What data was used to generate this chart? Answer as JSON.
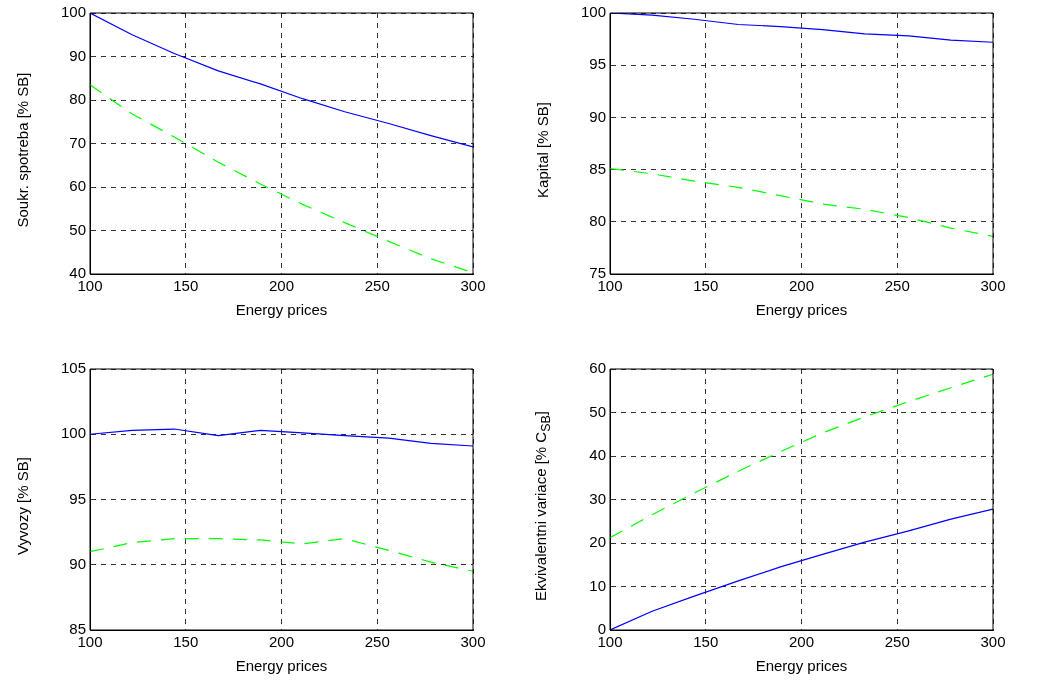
{
  "chart_data": [
    {
      "type": "line",
      "xlabel": "Energy prices",
      "ylabel": "Soukr. spotreba [% SB]",
      "x": [
        100,
        122,
        144,
        167,
        189,
        211,
        233,
        256,
        278,
        300
      ],
      "xlim": [
        100,
        300
      ],
      "xticks": [
        100,
        150,
        200,
        250,
        300
      ],
      "ylim": [
        40,
        100
      ],
      "yticks": [
        40,
        50,
        60,
        70,
        80,
        90,
        100
      ],
      "grid": true,
      "marker": "none",
      "series": [
        {
          "color": "#0000ff",
          "line_style": "solid",
          "values": [
            100,
            95,
            90.7,
            86.7,
            83.7,
            80.3,
            77.3,
            74.6,
            71.8,
            69.2
          ]
        },
        {
          "color": "#00ff00",
          "line_style": "dashed",
          "values": [
            83.5,
            76.8,
            71.5,
            65.7,
            60.7,
            56,
            51.8,
            47.5,
            43.5,
            40.3
          ]
        }
      ]
    },
    {
      "type": "line",
      "xlabel": "Energy prices",
      "ylabel": "Kapital [% SB]",
      "x": [
        100,
        122,
        144,
        167,
        189,
        211,
        233,
        256,
        278,
        300
      ],
      "xlim": [
        100,
        300
      ],
      "xticks": [
        100,
        150,
        200,
        250,
        300
      ],
      "ylim": [
        75,
        100
      ],
      "yticks": [
        75,
        80,
        85,
        90,
        95,
        100
      ],
      "grid": true,
      "marker": "none",
      "series": [
        {
          "color": "#0000ff",
          "line_style": "solid",
          "values": [
            100,
            99.8,
            99.4,
            98.9,
            98.7,
            98.4,
            98.0,
            97.8,
            97.4,
            97.2
          ]
        },
        {
          "color": "#00ff00",
          "line_style": "dashed",
          "values": [
            85.1,
            84.6,
            83.9,
            83.3,
            82.5,
            81.7,
            81.2,
            80.4,
            79.4,
            78.6
          ]
        }
      ]
    },
    {
      "type": "line",
      "xlabel": "Energy prices",
      "ylabel": "Vyvozy [% SB]",
      "x": [
        100,
        122,
        144,
        167,
        189,
        211,
        233,
        256,
        278,
        300
      ],
      "xlim": [
        100,
        300
      ],
      "xticks": [
        100,
        150,
        200,
        250,
        300
      ],
      "ylim": [
        85,
        105
      ],
      "yticks": [
        85,
        90,
        95,
        100,
        105
      ],
      "grid": true,
      "marker": "none",
      "series": [
        {
          "color": "#0000ff",
          "line_style": "solid",
          "values": [
            100,
            100.3,
            100.4,
            99.9,
            100.3,
            100.1,
            99.9,
            99.7,
            99.3,
            99.1
          ]
        },
        {
          "color": "#00ff00",
          "line_style": "dashed",
          "values": [
            91,
            91.7,
            92,
            92,
            91.9,
            91.6,
            92,
            91.1,
            90.2,
            89.5
          ]
        }
      ]
    },
    {
      "type": "line",
      "xlabel": "Energy prices",
      "ylabel": "Ekvivalentni variace [% C$_{SB}$]",
      "x": [
        100,
        122,
        144,
        167,
        189,
        211,
        233,
        256,
        278,
        300
      ],
      "xlim": [
        100,
        300
      ],
      "xticks": [
        100,
        150,
        200,
        250,
        300
      ],
      "ylim": [
        0,
        60
      ],
      "yticks": [
        0,
        10,
        20,
        30,
        40,
        50,
        60
      ],
      "grid": true,
      "marker": "none",
      "series": [
        {
          "color": "#0000ff",
          "line_style": "solid",
          "values": [
            0,
            4.3,
            7.8,
            11.3,
            14.5,
            17.4,
            20.2,
            22.8,
            25.5,
            27.8
          ]
        },
        {
          "color": "#00ff00",
          "line_style": "dashed",
          "values": [
            21.2,
            26.5,
            31.5,
            36.5,
            41,
            45.3,
            49,
            52.5,
            55.7,
            58.8
          ]
        }
      ]
    }
  ]
}
